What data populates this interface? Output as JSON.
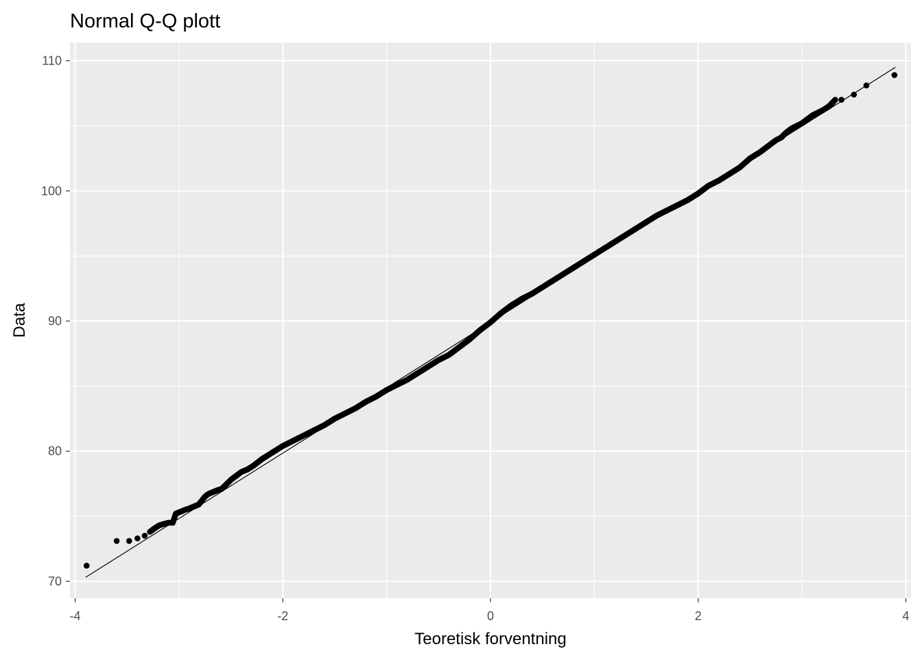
{
  "chart_data": {
    "type": "scatter",
    "title": "Normal Q-Q plott",
    "xlabel": "Teoretisk forventning",
    "ylabel": "Data",
    "xlim": [
      -4.05,
      4.05
    ],
    "ylim": [
      68.7,
      111.4
    ],
    "x_ticks": [
      -4,
      -2,
      0,
      2,
      4
    ],
    "x_tick_labels": [
      "-4",
      "-2",
      "0",
      "2",
      "4"
    ],
    "y_ticks": [
      70,
      80,
      90,
      100,
      110
    ],
    "y_tick_labels": [
      "70",
      "80",
      "90",
      "100",
      "110"
    ],
    "grid": true,
    "legend": "none",
    "colors": {
      "panel": "#ebebeb",
      "grid": "#ffffff",
      "points": "#000000",
      "line": "#000000"
    },
    "reference_line": {
      "x": [
        -3.9,
        3.9
      ],
      "y": [
        70.3,
        109.5
      ]
    },
    "points": {
      "x": [
        -3.89,
        -3.6,
        -3.48,
        -3.4,
        -3.33,
        -3.28,
        -3.23,
        -3.19,
        -3.15,
        -3.1,
        -3.06,
        -3.03,
        -3.0,
        -2.97,
        -2.94,
        -2.9,
        -2.87,
        -2.84,
        -2.81,
        -2.78,
        -2.75,
        -2.72,
        -2.69,
        -2.66,
        -2.63,
        -2.59,
        -2.55,
        -2.5,
        -2.45,
        -2.4,
        -2.34,
        -2.28,
        -2.2,
        -2.1,
        -2.0,
        -1.9,
        -1.8,
        -1.7,
        -1.6,
        -1.5,
        -1.4,
        -1.3,
        -1.2,
        -1.1,
        -1.0,
        -0.9,
        -0.8,
        -0.7,
        -0.6,
        -0.5,
        -0.4,
        -0.3,
        -0.2,
        -0.1,
        0.0,
        0.1,
        0.2,
        0.3,
        0.4,
        0.5,
        0.6,
        0.7,
        0.8,
        0.9,
        1.0,
        1.1,
        1.2,
        1.3,
        1.4,
        1.5,
        1.6,
        1.7,
        1.8,
        1.9,
        2.0,
        2.1,
        2.2,
        2.3,
        2.4,
        2.5,
        2.6,
        2.7,
        2.75,
        2.8,
        2.85,
        2.9,
        2.95,
        3.0,
        3.05,
        3.1,
        3.15,
        3.2,
        3.26,
        3.32,
        3.38,
        3.5,
        3.62,
        3.89
      ],
      "y": [
        71.2,
        73.1,
        73.1,
        73.3,
        73.5,
        73.8,
        74.1,
        74.3,
        74.4,
        74.5,
        74.5,
        75.2,
        75.3,
        75.4,
        75.5,
        75.6,
        75.7,
        75.8,
        75.9,
        76.2,
        76.5,
        76.7,
        76.8,
        76.9,
        77.0,
        77.1,
        77.4,
        77.8,
        78.1,
        78.4,
        78.6,
        78.9,
        79.4,
        79.9,
        80.4,
        80.8,
        81.2,
        81.6,
        82.0,
        82.5,
        82.9,
        83.3,
        83.8,
        84.2,
        84.7,
        85.1,
        85.5,
        86.0,
        86.5,
        87.0,
        87.4,
        88.0,
        88.6,
        89.3,
        89.9,
        90.6,
        91.2,
        91.7,
        92.1,
        92.6,
        93.1,
        93.6,
        94.1,
        94.6,
        95.1,
        95.6,
        96.1,
        96.6,
        97.1,
        97.6,
        98.1,
        98.5,
        98.9,
        99.3,
        99.8,
        100.4,
        100.8,
        101.3,
        101.8,
        102.5,
        103.0,
        103.6,
        103.9,
        104.1,
        104.5,
        104.8,
        105.0,
        105.2,
        105.5,
        105.8,
        106.0,
        106.2,
        106.5,
        107.0,
        107.0,
        107.4,
        108.1,
        108.9
      ]
    }
  }
}
